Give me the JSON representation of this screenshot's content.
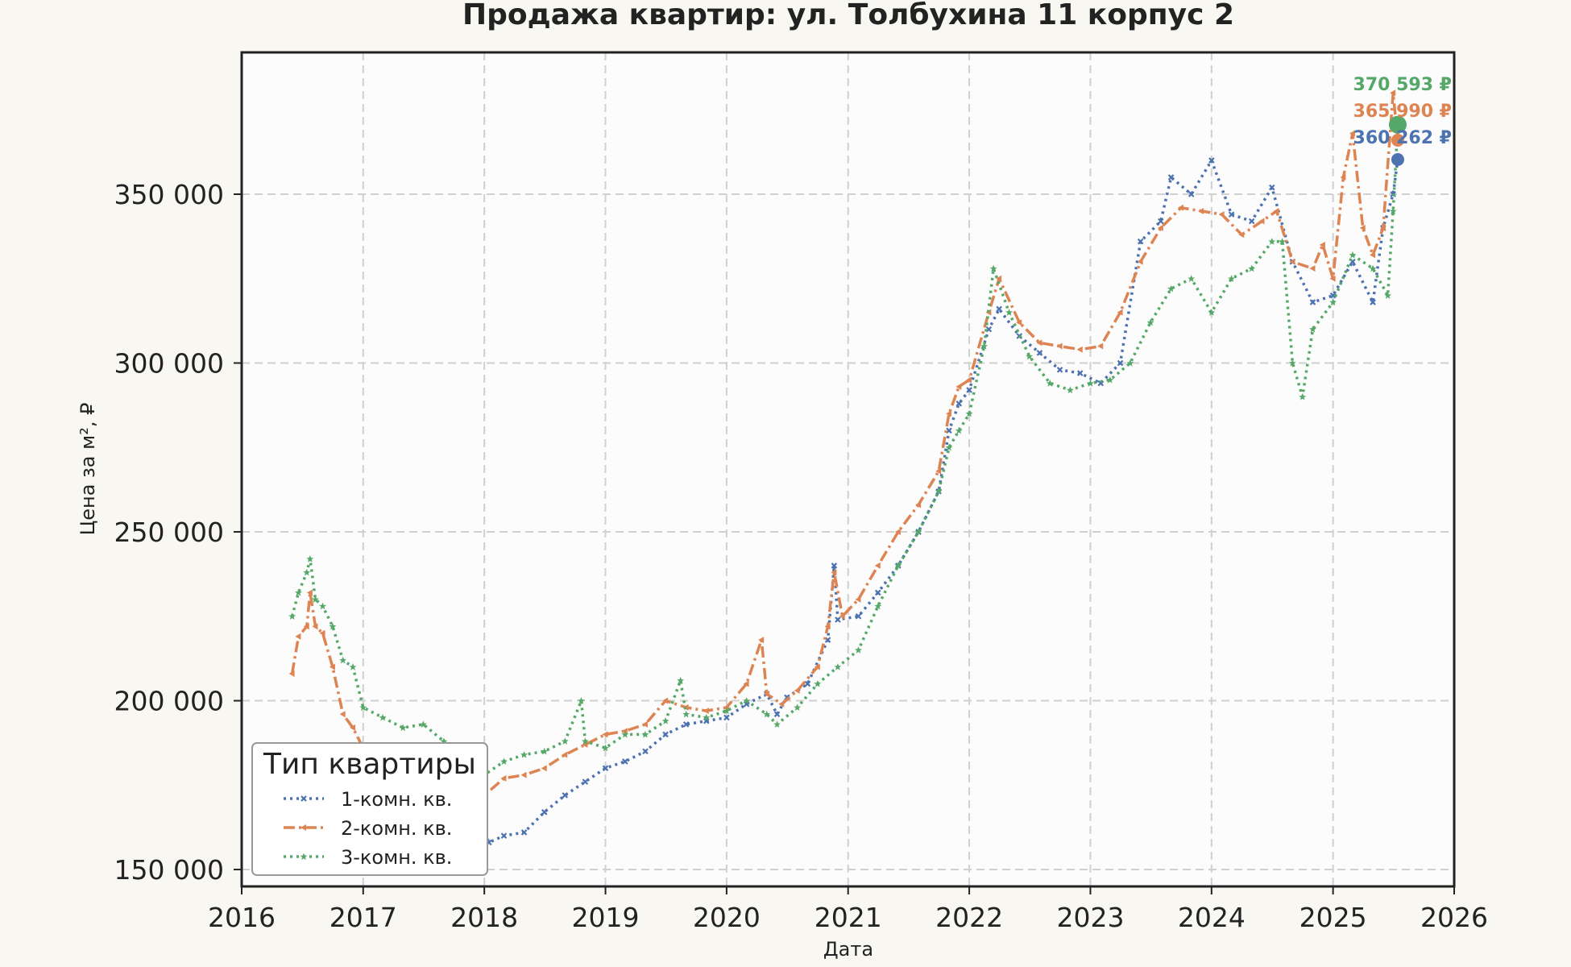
{
  "chart_data": {
    "type": "line",
    "title": "Продажа квартир: ул. Толбухина 11 корпус 2",
    "xlabel": "Дата",
    "ylabel": "Цена за м², ₽",
    "xlim": [
      "2016-01-01",
      "2026-01-01"
    ],
    "ylim": [
      145000,
      392000
    ],
    "x_ticks": [
      "2016",
      "2017",
      "2018",
      "2019",
      "2020",
      "2021",
      "2022",
      "2023",
      "2024",
      "2025",
      "2026"
    ],
    "y_ticks": [
      150000,
      200000,
      250000,
      300000,
      350000
    ],
    "y_tick_labels": [
      "150 000",
      "200 000",
      "250 000",
      "300 000",
      "350 000"
    ],
    "grid": true,
    "legend": {
      "title": "Тип квартиры",
      "position": "bottom-left"
    },
    "series": [
      {
        "name": "1-комн. кв.",
        "color": "#4c72b0",
        "line_style": "dotted",
        "marker": "x",
        "points": [
          [
            "2017-09-01",
            182000
          ],
          [
            "2017-10-15",
            178000
          ],
          [
            "2017-12-01",
            168000
          ],
          [
            "2018-01-15",
            158000
          ],
          [
            "2018-03-01",
            160000
          ],
          [
            "2018-05-01",
            161000
          ],
          [
            "2018-07-01",
            167000
          ],
          [
            "2018-09-01",
            172000
          ],
          [
            "2018-11-01",
            176000
          ],
          [
            "2019-01-01",
            180000
          ],
          [
            "2019-03-01",
            182000
          ],
          [
            "2019-05-01",
            185000
          ],
          [
            "2019-07-01",
            190000
          ],
          [
            "2019-09-01",
            193000
          ],
          [
            "2019-11-01",
            194000
          ],
          [
            "2020-01-01",
            195000
          ],
          [
            "2020-03-01",
            199000
          ],
          [
            "2020-05-01",
            202000
          ],
          [
            "2020-06-01",
            196000
          ],
          [
            "2020-07-01",
            201000
          ],
          [
            "2020-09-01",
            205000
          ],
          [
            "2020-11-01",
            218000
          ],
          [
            "2020-11-20",
            240000
          ],
          [
            "2020-12-01",
            224000
          ],
          [
            "2021-02-01",
            225000
          ],
          [
            "2021-04-01",
            232000
          ],
          [
            "2021-06-01",
            240000
          ],
          [
            "2021-08-01",
            250000
          ],
          [
            "2021-10-01",
            262000
          ],
          [
            "2021-11-01",
            280000
          ],
          [
            "2021-12-01",
            288000
          ],
          [
            "2022-01-01",
            292000
          ],
          [
            "2022-03-01",
            310000
          ],
          [
            "2022-04-01",
            316000
          ],
          [
            "2022-06-01",
            308000
          ],
          [
            "2022-08-01",
            303000
          ],
          [
            "2022-10-01",
            298000
          ],
          [
            "2022-12-01",
            297000
          ],
          [
            "2023-02-01",
            294000
          ],
          [
            "2023-04-01",
            300000
          ],
          [
            "2023-06-01",
            336000
          ],
          [
            "2023-08-01",
            342000
          ],
          [
            "2023-09-01",
            355000
          ],
          [
            "2023-11-01",
            350000
          ],
          [
            "2024-01-01",
            360000
          ],
          [
            "2024-03-01",
            344000
          ],
          [
            "2024-05-01",
            342000
          ],
          [
            "2024-07-01",
            352000
          ],
          [
            "2024-09-01",
            330000
          ],
          [
            "2024-11-01",
            318000
          ],
          [
            "2025-01-01",
            320000
          ],
          [
            "2025-03-01",
            330000
          ],
          [
            "2025-05-01",
            318000
          ],
          [
            "2025-06-01",
            340000
          ],
          [
            "2025-07-01",
            350000
          ],
          [
            "2025-07-15",
            360262
          ]
        ]
      },
      {
        "name": "2-комн. кв.",
        "color": "#dd8452",
        "line_style": "dashdot",
        "marker": "triangle",
        "points": [
          [
            "2016-06-01",
            208000
          ],
          [
            "2016-06-20",
            219000
          ],
          [
            "2016-07-15",
            222000
          ],
          [
            "2016-07-25",
            232000
          ],
          [
            "2016-08-10",
            222000
          ],
          [
            "2016-09-01",
            220000
          ],
          [
            "2016-10-01",
            210000
          ],
          [
            "2016-11-01",
            196000
          ],
          [
            "2016-12-01",
            192000
          ],
          [
            "2017-01-01",
            186000
          ],
          [
            "2017-03-01",
            182000
          ],
          [
            "2017-05-01",
            180000
          ],
          [
            "2017-07-01",
            178000
          ],
          [
            "2017-09-01",
            176000
          ],
          [
            "2017-11-01",
            175000
          ],
          [
            "2018-01-01",
            172000
          ],
          [
            "2018-03-01",
            177000
          ],
          [
            "2018-05-01",
            178000
          ],
          [
            "2018-07-01",
            180000
          ],
          [
            "2018-09-01",
            184000
          ],
          [
            "2018-11-01",
            187000
          ],
          [
            "2019-01-01",
            190000
          ],
          [
            "2019-03-01",
            191000
          ],
          [
            "2019-05-01",
            193000
          ],
          [
            "2019-07-01",
            200000
          ],
          [
            "2019-09-01",
            198000
          ],
          [
            "2019-11-01",
            197000
          ],
          [
            "2020-01-01",
            198000
          ],
          [
            "2020-03-01",
            205000
          ],
          [
            "2020-04-15",
            218000
          ],
          [
            "2020-05-01",
            202000
          ],
          [
            "2020-06-15",
            199000
          ],
          [
            "2020-08-01",
            203000
          ],
          [
            "2020-10-01",
            210000
          ],
          [
            "2020-11-01",
            222000
          ],
          [
            "2020-11-20",
            238000
          ],
          [
            "2020-12-15",
            225000
          ],
          [
            "2021-02-01",
            230000
          ],
          [
            "2021-04-01",
            240000
          ],
          [
            "2021-06-01",
            250000
          ],
          [
            "2021-08-01",
            258000
          ],
          [
            "2021-10-01",
            268000
          ],
          [
            "2021-11-01",
            285000
          ],
          [
            "2021-12-01",
            293000
          ],
          [
            "2022-01-01",
            295000
          ],
          [
            "2022-03-01",
            315000
          ],
          [
            "2022-04-01",
            325000
          ],
          [
            "2022-06-01",
            312000
          ],
          [
            "2022-08-01",
            306000
          ],
          [
            "2022-10-01",
            305000
          ],
          [
            "2022-12-01",
            304000
          ],
          [
            "2023-02-01",
            305000
          ],
          [
            "2023-04-01",
            315000
          ],
          [
            "2023-06-01",
            330000
          ],
          [
            "2023-08-01",
            340000
          ],
          [
            "2023-10-01",
            346000
          ],
          [
            "2023-12-01",
            345000
          ],
          [
            "2024-02-01",
            344000
          ],
          [
            "2024-04-01",
            338000
          ],
          [
            "2024-06-01",
            342000
          ],
          [
            "2024-07-15",
            345000
          ],
          [
            "2024-09-01",
            330000
          ],
          [
            "2024-11-01",
            328000
          ],
          [
            "2024-12-01",
            335000
          ],
          [
            "2025-01-01",
            325000
          ],
          [
            "2025-02-01",
            355000
          ],
          [
            "2025-03-01",
            368000
          ],
          [
            "2025-04-01",
            340000
          ],
          [
            "2025-05-01",
            332000
          ],
          [
            "2025-06-01",
            340000
          ],
          [
            "2025-07-01",
            380000
          ],
          [
            "2025-07-15",
            365990
          ]
        ]
      },
      {
        "name": "3-комн. кв.",
        "color": "#55a868",
        "line_style": "dotted",
        "marker": "star",
        "points": [
          [
            "2016-06-01",
            225000
          ],
          [
            "2016-06-20",
            232000
          ],
          [
            "2016-07-15",
            238000
          ],
          [
            "2016-07-25",
            242000
          ],
          [
            "2016-08-10",
            230000
          ],
          [
            "2016-09-01",
            228000
          ],
          [
            "2016-10-01",
            222000
          ],
          [
            "2016-11-01",
            212000
          ],
          [
            "2016-12-01",
            210000
          ],
          [
            "2017-01-01",
            198000
          ],
          [
            "2017-03-01",
            195000
          ],
          [
            "2017-05-01",
            192000
          ],
          [
            "2017-07-01",
            193000
          ],
          [
            "2017-09-01",
            188000
          ],
          [
            "2017-11-01",
            180000
          ],
          [
            "2018-01-01",
            178000
          ],
          [
            "2018-03-01",
            182000
          ],
          [
            "2018-05-01",
            184000
          ],
          [
            "2018-07-01",
            185000
          ],
          [
            "2018-09-01",
            188000
          ],
          [
            "2018-10-20",
            200000
          ],
          [
            "2018-11-01",
            188000
          ],
          [
            "2019-01-01",
            186000
          ],
          [
            "2019-03-01",
            190000
          ],
          [
            "2019-05-01",
            190000
          ],
          [
            "2019-07-01",
            194000
          ],
          [
            "2019-08-15",
            206000
          ],
          [
            "2019-09-01",
            196000
          ],
          [
            "2019-11-01",
            195000
          ],
          [
            "2020-01-01",
            197000
          ],
          [
            "2020-03-01",
            200000
          ],
          [
            "2020-05-01",
            196000
          ],
          [
            "2020-06-01",
            193000
          ],
          [
            "2020-08-01",
            198000
          ],
          [
            "2020-10-01",
            205000
          ],
          [
            "2020-12-01",
            210000
          ],
          [
            "2021-02-01",
            215000
          ],
          [
            "2021-04-01",
            228000
          ],
          [
            "2021-06-01",
            240000
          ],
          [
            "2021-08-01",
            250000
          ],
          [
            "2021-10-01",
            262000
          ],
          [
            "2021-11-01",
            275000
          ],
          [
            "2021-12-01",
            280000
          ],
          [
            "2022-01-01",
            285000
          ],
          [
            "2022-02-15",
            305000
          ],
          [
            "2022-03-15",
            328000
          ],
          [
            "2022-05-01",
            315000
          ],
          [
            "2022-07-01",
            302000
          ],
          [
            "2022-09-01",
            294000
          ],
          [
            "2022-11-01",
            292000
          ],
          [
            "2023-01-01",
            294000
          ],
          [
            "2023-03-01",
            295000
          ],
          [
            "2023-05-01",
            300000
          ],
          [
            "2023-07-01",
            312000
          ],
          [
            "2023-09-01",
            322000
          ],
          [
            "2023-11-01",
            325000
          ],
          [
            "2024-01-01",
            315000
          ],
          [
            "2024-03-01",
            325000
          ],
          [
            "2024-05-01",
            328000
          ],
          [
            "2024-07-01",
            336000
          ],
          [
            "2024-08-01",
            336000
          ],
          [
            "2024-09-01",
            300000
          ],
          [
            "2024-10-01",
            290000
          ],
          [
            "2024-11-01",
            310000
          ],
          [
            "2025-01-01",
            318000
          ],
          [
            "2025-03-01",
            332000
          ],
          [
            "2025-05-01",
            328000
          ],
          [
            "2025-06-15",
            320000
          ],
          [
            "2025-07-01",
            345000
          ],
          [
            "2025-07-15",
            370593
          ]
        ]
      }
    ],
    "last_values": [
      {
        "series": "3-комн. кв.",
        "label": "370 593 ₽",
        "color": "#55a868",
        "x": "2025-07-15",
        "y": 370593
      },
      {
        "series": "2-комн. кв.",
        "label": "365 990 ₽",
        "color": "#dd8452",
        "x": "2025-07-15",
        "y": 365990
      },
      {
        "series": "1-комн. кв.",
        "label": "360 262 ₽",
        "color": "#4c72b0",
        "x": "2025-07-15",
        "y": 360262
      }
    ]
  }
}
